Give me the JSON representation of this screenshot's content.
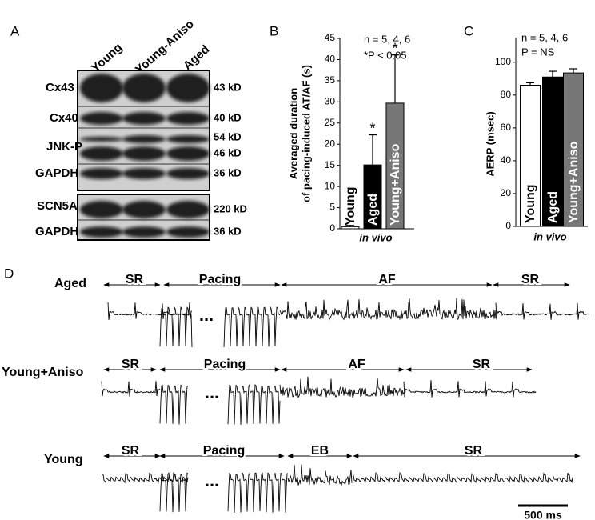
{
  "panel_labels": [
    "A",
    "B",
    "C",
    "D"
  ],
  "blot": {
    "lanes": [
      "Young",
      "Young-Aniso",
      "Aged"
    ],
    "rows": [
      {
        "label": "Cx43",
        "markers": [
          "43 kD"
        ]
      },
      {
        "label": "Cx40",
        "markers": [
          "40 kD"
        ]
      },
      {
        "label": "JNK-P",
        "markers": [
          "54 kD",
          "46 kD"
        ]
      },
      {
        "label": "GAPDH",
        "markers": [
          "36 kD"
        ]
      },
      {
        "label": "SCN5A",
        "markers": [
          "220 kD"
        ]
      },
      {
        "label": "GAPDH",
        "markers": [
          "36 kD"
        ]
      }
    ]
  },
  "chart_data": [
    {
      "type": "bar",
      "ylabel": [
        "Averaged duration",
        "of pacing-induced AT/AF (s)"
      ],
      "xlabel": "in vivo",
      "annotations": [
        "n = 5, 4, 6",
        "*P < 0.05"
      ],
      "categories": [
        "Young",
        "Aged",
        "Young+Aniso"
      ],
      "values": [
        0.5,
        15.1,
        29.7
      ],
      "errors": [
        0.3,
        7.1,
        11.4
      ],
      "significance": [
        null,
        "*",
        "*"
      ],
      "colors": [
        "#ffffff",
        "#000000",
        "#777777"
      ],
      "ylim": [
        0,
        45
      ],
      "yticks": [
        0,
        5,
        10,
        15,
        20,
        25,
        30,
        35,
        40,
        45
      ]
    },
    {
      "type": "bar",
      "ylabel": [
        "AERP (msec)"
      ],
      "xlabel": "in vivo",
      "annotations": [
        "n = 5, 4, 6",
        "P = NS"
      ],
      "categories": [
        "Young",
        "Aged",
        "Young+Aniso"
      ],
      "values": [
        86,
        91,
        93.5
      ],
      "errors": [
        1.5,
        3.5,
        2.5
      ],
      "colors": [
        "#ffffff",
        "#000000",
        "#777777"
      ],
      "ylim": [
        0,
        115
      ],
      "yticks": [
        0,
        20,
        40,
        60,
        80,
        100
      ]
    }
  ],
  "traces": {
    "rows": [
      {
        "label": "Aged",
        "segments": [
          "SR",
          "Pacing",
          "AF",
          "SR"
        ]
      },
      {
        "label": "Young+Aniso",
        "segments": [
          "SR",
          "Pacing",
          "AF",
          "SR"
        ]
      },
      {
        "label": "Young",
        "segments": [
          "SR",
          "Pacing",
          "EB",
          "SR"
        ]
      }
    ],
    "ellipsis": "...",
    "scale_bar": "500 ms"
  }
}
